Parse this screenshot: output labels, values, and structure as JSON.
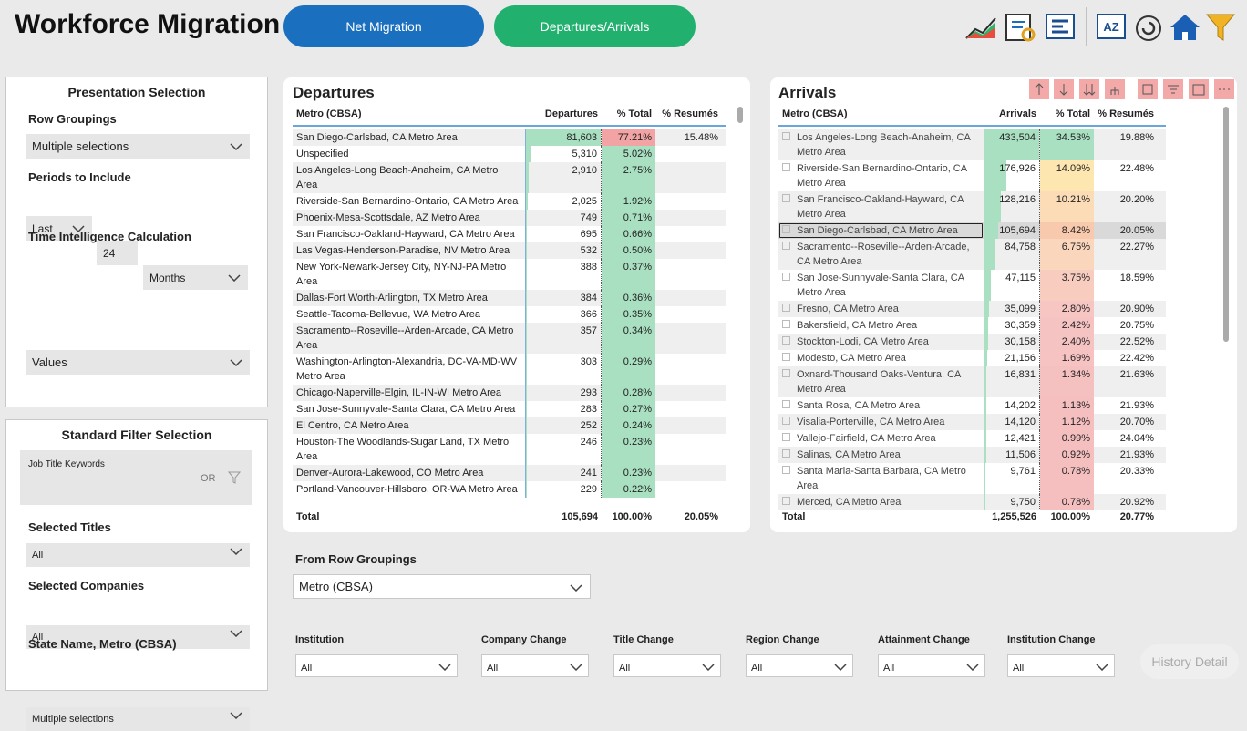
{
  "header": {
    "title": "Workforce Migration",
    "buttons": [
      "Net Migration",
      "Departures/Arrivals"
    ],
    "sort_icon_text": "AZ"
  },
  "presentation": {
    "title": "Presentation Selection",
    "row_groupings_label": "Row Groupings",
    "row_groupings_value": "Multiple selections",
    "periods_label": "Periods to Include",
    "period_direction": "Last",
    "period_count": "24",
    "period_unit": "Months",
    "time_intel_label": "Time Intelligence Calculation",
    "time_intel_value": "Values"
  },
  "standard_filter": {
    "title": "Standard Filter Selection",
    "keywords_label": "Job Title Keywords",
    "keywords_mode": "OR",
    "fields": [
      {
        "label": "Selected Titles",
        "value": "All"
      },
      {
        "label": "Selected Companies",
        "value": "All"
      },
      {
        "label": "State Name, Metro (CBSA)",
        "value": "Multiple selections"
      }
    ]
  },
  "departures": {
    "title": "Departures",
    "columns": [
      "Metro (CBSA)",
      "Departures",
      "% Total",
      "% Resumés"
    ],
    "rows": [
      {
        "metro": "San Diego-Carlsbad, CA Metro Area",
        "count": "81,603",
        "pct": "77.21%",
        "resumes": "15.48%"
      },
      {
        "metro": "Unspecified",
        "count": "5,310",
        "pct": "5.02%",
        "resumes": null
      },
      {
        "metro": "Los Angeles-Long Beach-Anaheim, CA Metro Area",
        "count": "2,910",
        "pct": "2.75%",
        "resumes": null
      },
      {
        "metro": "Riverside-San Bernardino-Ontario, CA Metro Area",
        "count": "2,025",
        "pct": "1.92%",
        "resumes": null
      },
      {
        "metro": "Phoenix-Mesa-Scottsdale, AZ Metro Area",
        "count": "749",
        "pct": "0.71%",
        "resumes": null
      },
      {
        "metro": "San Francisco-Oakland-Hayward, CA Metro Area",
        "count": "695",
        "pct": "0.66%",
        "resumes": null
      },
      {
        "metro": "Las Vegas-Henderson-Paradise, NV Metro Area",
        "count": "532",
        "pct": "0.50%",
        "resumes": null
      },
      {
        "metro": "New York-Newark-Jersey City, NY-NJ-PA Metro Area",
        "count": "388",
        "pct": "0.37%",
        "resumes": null
      },
      {
        "metro": "Dallas-Fort Worth-Arlington, TX Metro Area",
        "count": "384",
        "pct": "0.36%",
        "resumes": null
      },
      {
        "metro": "Seattle-Tacoma-Bellevue, WA Metro Area",
        "count": "366",
        "pct": "0.35%",
        "resumes": null
      },
      {
        "metro": "Sacramento--Roseville--Arden-Arcade, CA Metro Area",
        "count": "357",
        "pct": "0.34%",
        "resumes": null
      },
      {
        "metro": "Washington-Arlington-Alexandria, DC-VA-MD-WV Metro Area",
        "count": "303",
        "pct": "0.29%",
        "resumes": null
      },
      {
        "metro": "Chicago-Naperville-Elgin, IL-IN-WI Metro Area",
        "count": "293",
        "pct": "0.28%",
        "resumes": null
      },
      {
        "metro": "San Jose-Sunnyvale-Santa Clara, CA Metro Area",
        "count": "283",
        "pct": "0.27%",
        "resumes": null
      },
      {
        "metro": "El Centro, CA Metro Area",
        "count": "252",
        "pct": "0.24%",
        "resumes": null
      },
      {
        "metro": "Houston-The Woodlands-Sugar Land, TX Metro Area",
        "count": "246",
        "pct": "0.23%",
        "resumes": null
      },
      {
        "metro": "Denver-Aurora-Lakewood, CO Metro Area",
        "count": "241",
        "pct": "0.23%",
        "resumes": null
      },
      {
        "metro": "Portland-Vancouver-Hillsboro, OR-WA Metro Area",
        "count": "229",
        "pct": "0.22%",
        "resumes": null
      }
    ],
    "pct_colors": [
      "#f2a3a3",
      "#a9e0c2",
      "#a9e0c2",
      "#a9e0c2",
      "#a9e0c2",
      "#a9e0c2",
      "#a9e0c2",
      "#a9e0c2",
      "#a9e0c2",
      "#a9e0c2",
      "#a9e0c2",
      "#a9e0c2",
      "#a9e0c2",
      "#a9e0c2",
      "#a9e0c2",
      "#a9e0c2",
      "#a9e0c2",
      "#a9e0c2"
    ],
    "total": {
      "metro": "Total",
      "count": "105,694",
      "pct": "100.00%",
      "resumes": "20.05%"
    }
  },
  "arrivals": {
    "title": "Arrivals",
    "columns": [
      "Metro (CBSA)",
      "Arrivals",
      "% Total",
      "% Resumés"
    ],
    "rows": [
      {
        "metro": "Los Angeles-Long Beach-Anaheim, CA Metro Area",
        "count": "433,504",
        "pct": "34.53%",
        "resumes": "19.88%"
      },
      {
        "metro": "Riverside-San Bernardino-Ontario, CA Metro Area",
        "count": "176,926",
        "pct": "14.09%",
        "resumes": "22.48%"
      },
      {
        "metro": "San Francisco-Oakland-Hayward, CA Metro Area",
        "count": "128,216",
        "pct": "10.21%",
        "resumes": "20.20%"
      },
      {
        "metro": "San Diego-Carlsbad, CA Metro Area",
        "count": "105,694",
        "pct": "8.42%",
        "resumes": "20.05%"
      },
      {
        "metro": "Sacramento--Roseville--Arden-Arcade, CA Metro Area",
        "count": "84,758",
        "pct": "6.75%",
        "resumes": "22.27%"
      },
      {
        "metro": "San Jose-Sunnyvale-Santa Clara, CA Metro Area",
        "count": "47,115",
        "pct": "3.75%",
        "resumes": "18.59%"
      },
      {
        "metro": "Fresno, CA Metro Area",
        "count": "35,099",
        "pct": "2.80%",
        "resumes": "20.90%"
      },
      {
        "metro": "Bakersfield, CA Metro Area",
        "count": "30,359",
        "pct": "2.42%",
        "resumes": "20.75%"
      },
      {
        "metro": "Stockton-Lodi, CA Metro Area",
        "count": "30,158",
        "pct": "2.40%",
        "resumes": "22.52%"
      },
      {
        "metro": "Modesto, CA Metro Area",
        "count": "21,156",
        "pct": "1.69%",
        "resumes": "22.42%"
      },
      {
        "metro": "Oxnard-Thousand Oaks-Ventura, CA Metro Area",
        "count": "16,831",
        "pct": "1.34%",
        "resumes": "21.63%"
      },
      {
        "metro": "Santa Rosa, CA Metro Area",
        "count": "14,202",
        "pct": "1.13%",
        "resumes": "21.93%"
      },
      {
        "metro": "Visalia-Porterville, CA Metro Area",
        "count": "14,120",
        "pct": "1.12%",
        "resumes": "20.70%"
      },
      {
        "metro": "Vallejo-Fairfield, CA Metro Area",
        "count": "12,421",
        "pct": "0.99%",
        "resumes": "24.04%"
      },
      {
        "metro": "Salinas, CA Metro Area",
        "count": "11,506",
        "pct": "0.92%",
        "resumes": "21.93%"
      },
      {
        "metro": "Santa Maria-Santa Barbara, CA Metro Area",
        "count": "9,761",
        "pct": "0.78%",
        "resumes": "20.33%"
      },
      {
        "metro": "Merced, CA Metro Area",
        "count": "9,750",
        "pct": "0.78%",
        "resumes": "20.92%"
      }
    ],
    "pct_colors": [
      "#a9e0c2",
      "#fde6b0",
      "#fcdcb6",
      "#f9c9ad",
      "#fad6bd",
      "#f8cdc0",
      "#f7c6c2",
      "#f6c3c3",
      "#f6c3c3",
      "#f6c2c2",
      "#f5c0c0",
      "#f5bfbf",
      "#f5bfbf",
      "#f5bfbf",
      "#f5bfbf",
      "#f5bfbf",
      "#f5bfbf"
    ],
    "selected_row": 3,
    "total": {
      "metro": "Total",
      "count": "1,255,526",
      "pct": "100.00%",
      "resumes": "20.77%"
    }
  },
  "from_row_groupings": {
    "label": "From Row Groupings",
    "value": "Metro (CBSA)"
  },
  "filters": [
    {
      "label": "Institution",
      "value": "All"
    },
    {
      "label": "Company Change",
      "value": "All"
    },
    {
      "label": "Title Change",
      "value": "All"
    },
    {
      "label": "Region Change",
      "value": "All"
    },
    {
      "label": "Attainment Change",
      "value": "All"
    },
    {
      "label": "Institution Change",
      "value": "All"
    }
  ],
  "history_button": "History Detail"
}
